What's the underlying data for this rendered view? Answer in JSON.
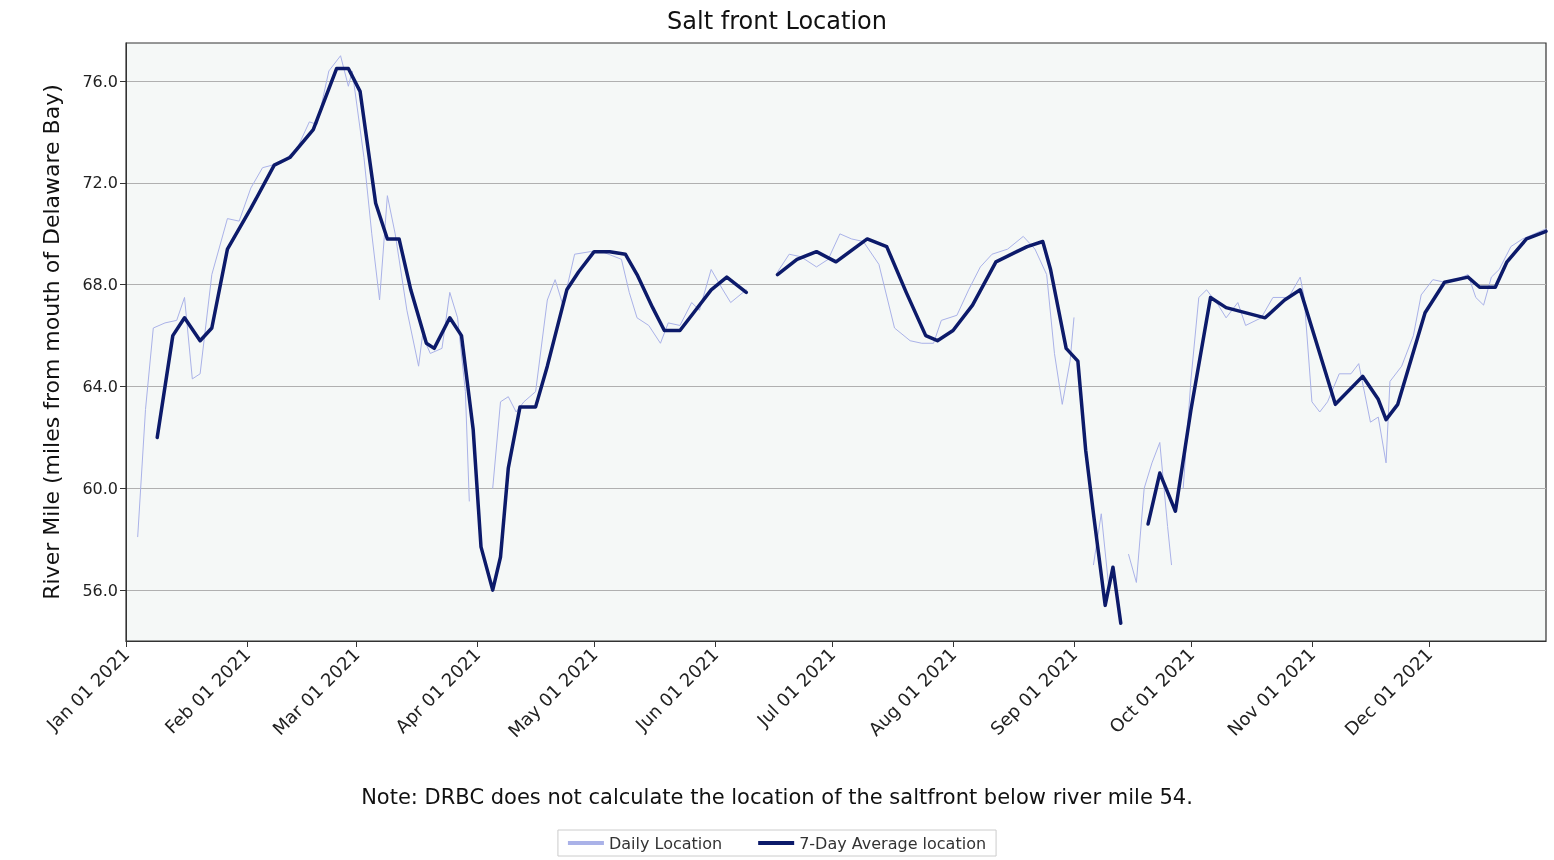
{
  "chart_data": {
    "type": "line",
    "title": "Salt front Location",
    "ylabel": "River Mile (miles from mouth of Delaware Bay)",
    "annotations": [
      "Note: DRBC does not calculate the location of the saltfront below river mile 54."
    ],
    "xlim": [
      "2021-01-01",
      "2021-12-31"
    ],
    "xticks": [
      {
        "value": "2021-01-01",
        "label": "Jan 01 2021"
      },
      {
        "value": "2021-02-01",
        "label": "Feb 01 2021"
      },
      {
        "value": "2021-03-01",
        "label": "Mar 01 2021"
      },
      {
        "value": "2021-04-01",
        "label": "Apr 01 2021"
      },
      {
        "value": "2021-05-01",
        "label": "May 01 2021"
      },
      {
        "value": "2021-06-01",
        "label": "Jun 01 2021"
      },
      {
        "value": "2021-07-01",
        "label": "Jul 01 2021"
      },
      {
        "value": "2021-08-01",
        "label": "Aug 01 2021"
      },
      {
        "value": "2021-09-01",
        "label": "Sep 01 2021"
      },
      {
        "value": "2021-10-01",
        "label": "Oct 01 2021"
      },
      {
        "value": "2021-11-01",
        "label": "Nov 01 2021"
      },
      {
        "value": "2021-12-01",
        "label": "Dec 01 2021"
      }
    ],
    "ylim": [
      54,
      77.5
    ],
    "yticks": [
      {
        "value": 56,
        "label": "56.0"
      },
      {
        "value": 60,
        "label": "60.0"
      },
      {
        "value": 64,
        "label": "64.0"
      },
      {
        "value": 68,
        "label": "68.0"
      },
      {
        "value": 72,
        "label": "72.0"
      },
      {
        "value": 76,
        "label": "76.0"
      }
    ],
    "grid": "y",
    "legend": "bottom",
    "marker": "none",
    "series": [
      {
        "name": "Daily Location",
        "color": "#aab2e8",
        "x": [
          "2021-01-04",
          "2021-01-06",
          "2021-01-08",
          "2021-01-11",
          "2021-01-14",
          "2021-01-16",
          "2021-01-18",
          "2021-01-20",
          "2021-01-23",
          "2021-01-27",
          "2021-01-30",
          "2021-02-02",
          "2021-02-05",
          "2021-02-10",
          "2021-02-14",
          "2021-02-17",
          "2021-02-19",
          "2021-02-22",
          "2021-02-25",
          "2021-02-27",
          "2021-02-28",
          "2021-03-03",
          "2021-03-05",
          "2021-03-07",
          "2021-03-09",
          "2021-03-11",
          "2021-03-14",
          "2021-03-17",
          "2021-03-18",
          "2021-03-20",
          "2021-03-23",
          "2021-03-25",
          "2021-03-27",
          "2021-03-29",
          "2021-03-30",
          "2021-04-01",
          "2021-04-02",
          "2021-04-03",
          "2021-04-05",
          "2021-04-07",
          "2021-04-09",
          "2021-04-11",
          "2021-04-13",
          "2021-04-16",
          "2021-04-19",
          "2021-04-21",
          "2021-04-23",
          "2021-04-26",
          "2021-04-30",
          "2021-05-03",
          "2021-05-08",
          "2021-05-10",
          "2021-05-12",
          "2021-05-15",
          "2021-05-18",
          "2021-05-20",
          "2021-05-23",
          "2021-05-26",
          "2021-05-28",
          "2021-05-31",
          "2021-06-03",
          "2021-06-05",
          "2021-06-09",
          "2021-06-12",
          "2021-06-17",
          "2021-06-20",
          "2021-06-23",
          "2021-06-27",
          "2021-06-30",
          "2021-07-03",
          "2021-07-06",
          "2021-07-09",
          "2021-07-13",
          "2021-07-17",
          "2021-07-21",
          "2021-07-24",
          "2021-07-27",
          "2021-07-29",
          "2021-08-02",
          "2021-08-05",
          "2021-08-08",
          "2021-08-11",
          "2021-08-15",
          "2021-08-19",
          "2021-08-22",
          "2021-08-25",
          "2021-08-27",
          "2021-08-29",
          "2021-08-31",
          "2021-09-01",
          "2021-09-03",
          "2021-09-04",
          "2021-09-05",
          "2021-09-06",
          "2021-09-08",
          "2021-09-10",
          "2021-09-11",
          "2021-09-12",
          "2021-09-14",
          "2021-09-15",
          "2021-09-17",
          "2021-09-19",
          "2021-09-21",
          "2021-09-23",
          "2021-09-25",
          "2021-09-26",
          "2021-09-27",
          "2021-09-28",
          "2021-09-29",
          "2021-10-01",
          "2021-10-03",
          "2021-10-05",
          "2021-10-08",
          "2021-10-10",
          "2021-10-13",
          "2021-10-15",
          "2021-10-19",
          "2021-10-22",
          "2021-10-26",
          "2021-10-29",
          "2021-10-30",
          "2021-11-01",
          "2021-11-03",
          "2021-11-05",
          "2021-11-08",
          "2021-11-11",
          "2021-11-13",
          "2021-11-16",
          "2021-11-18",
          "2021-11-20",
          "2021-11-21",
          "2021-11-24",
          "2021-11-27",
          "2021-11-29",
          "2021-12-02",
          "2021-12-05",
          "2021-12-08",
          "2021-12-11",
          "2021-12-13",
          "2021-12-15",
          "2021-12-17",
          "2021-12-19",
          "2021-12-22",
          "2021-12-25",
          "2021-12-28",
          "2021-12-31"
        ],
        "values": [
          58.1,
          63.1,
          66.3,
          66.5,
          66.6,
          67.5,
          64.3,
          64.5,
          68.4,
          70.6,
          70.5,
          71.8,
          72.6,
          72.8,
          73.4,
          74.4,
          74.3,
          76.4,
          77.0,
          75.8,
          76.4,
          73.0,
          70.0,
          67.4,
          71.5,
          70.0,
          67.0,
          64.8,
          66.0,
          65.3,
          65.5,
          67.7,
          66.7,
          63.8,
          59.5,
          null,
          null,
          null,
          60.0,
          63.4,
          63.6,
          63.0,
          63.4,
          63.8,
          67.4,
          68.2,
          67.2,
          69.2,
          69.3,
          69.3,
          69.0,
          67.7,
          66.7,
          66.4,
          65.7,
          66.5,
          66.4,
          67.3,
          67.0,
          68.6,
          67.8,
          67.3,
          67.8,
          null,
          68.5,
          69.2,
          69.1,
          68.7,
          69.0,
          70.0,
          69.8,
          69.7,
          68.8,
          66.3,
          65.8,
          65.7,
          65.7,
          66.6,
          66.8,
          67.8,
          68.7,
          69.2,
          69.4,
          69.9,
          69.4,
          68.4,
          65.3,
          63.3,
          65.0,
          66.7,
          null,
          null,
          null,
          57.0,
          59.0,
          56.0,
          null,
          null,
          null,
          57.4,
          56.3,
          60.0,
          61.0,
          61.8,
          58.5,
          57.0,
          null,
          null,
          60.0,
          64.3,
          67.5,
          67.8,
          67.2,
          66.7,
          67.3,
          66.4,
          66.7,
          67.5,
          67.5,
          68.3,
          67.5,
          63.4,
          63.0,
          63.4,
          64.5,
          64.5,
          64.9,
          62.6,
          62.8,
          61.0,
          64.2,
          64.8,
          66.0,
          67.6,
          68.2,
          68.1,
          68.2,
          68.4,
          67.5,
          67.2,
          68.3,
          68.6,
          69.5,
          69.8,
          70.0,
          70.2
        ]
      },
      {
        "name": "7-Day Average location",
        "color": "#0c1a6a",
        "x": [
          "2021-01-09",
          "2021-01-13",
          "2021-01-16",
          "2021-01-20",
          "2021-01-23",
          "2021-01-27",
          "2021-02-02",
          "2021-02-08",
          "2021-02-12",
          "2021-02-18",
          "2021-02-24",
          "2021-02-27",
          "2021-03-02",
          "2021-03-06",
          "2021-03-09",
          "2021-03-12",
          "2021-03-15",
          "2021-03-19",
          "2021-03-21",
          "2021-03-25",
          "2021-03-28",
          "2021-03-31",
          "2021-04-02",
          "2021-04-05",
          "2021-04-07",
          "2021-04-09",
          "2021-04-12",
          "2021-04-16",
          "2021-04-19",
          "2021-04-24",
          "2021-04-27",
          "2021-05-01",
          "2021-05-05",
          "2021-05-09",
          "2021-05-12",
          "2021-05-16",
          "2021-05-19",
          "2021-05-23",
          "2021-05-27",
          "2021-05-31",
          "2021-06-04",
          "2021-06-09",
          "2021-06-13",
          "2021-06-17",
          "2021-06-22",
          "2021-06-27",
          "2021-07-02",
          "2021-07-10",
          "2021-07-15",
          "2021-07-20",
          "2021-07-25",
          "2021-07-28",
          "2021-08-01",
          "2021-08-06",
          "2021-08-12",
          "2021-08-20",
          "2021-08-24",
          "2021-08-26",
          "2021-08-30",
          "2021-09-02",
          "2021-09-04",
          "2021-09-06",
          "2021-09-09",
          "2021-09-11",
          "2021-09-13",
          "2021-09-15",
          "2021-09-16",
          "2021-09-17",
          "2021-09-20",
          "2021-09-23",
          "2021-09-27",
          "2021-10-01",
          "2021-10-06",
          "2021-10-10",
          "2021-10-20",
          "2021-10-25",
          "2021-10-29",
          "2021-11-01",
          "2021-11-07",
          "2021-11-14",
          "2021-11-18",
          "2021-11-20",
          "2021-11-23",
          "2021-11-30",
          "2021-12-05",
          "2021-12-11",
          "2021-12-14",
          "2021-12-18",
          "2021-12-21",
          "2021-12-26",
          "2021-12-31"
        ],
        "values": [
          62.0,
          66.0,
          66.7,
          65.8,
          66.3,
          69.4,
          71.0,
          72.7,
          73.0,
          74.1,
          76.5,
          76.5,
          75.6,
          71.2,
          69.8,
          69.8,
          67.8,
          65.7,
          65.5,
          66.7,
          66.0,
          62.3,
          57.7,
          56.0,
          57.3,
          60.8,
          63.2,
          63.2,
          64.8,
          67.8,
          68.5,
          69.3,
          69.3,
          69.2,
          68.4,
          67.1,
          66.2,
          66.2,
          67.0,
          67.8,
          68.3,
          67.7,
          null,
          68.4,
          69.0,
          69.3,
          68.9,
          69.8,
          69.5,
          67.7,
          66.0,
          65.8,
          66.2,
          67.2,
          68.9,
          69.5,
          69.7,
          68.6,
          65.5,
          65.0,
          61.5,
          59.0,
          55.4,
          56.9,
          54.7,
          null,
          null,
          null,
          58.6,
          60.6,
          59.1,
          63.1,
          67.5,
          67.1,
          66.7,
          67.4,
          67.8,
          66.3,
          63.3,
          64.4,
          63.5,
          62.7,
          63.3,
          66.9,
          68.1,
          68.3,
          67.9,
          67.9,
          68.9,
          69.8,
          70.1
        ]
      }
    ]
  }
}
